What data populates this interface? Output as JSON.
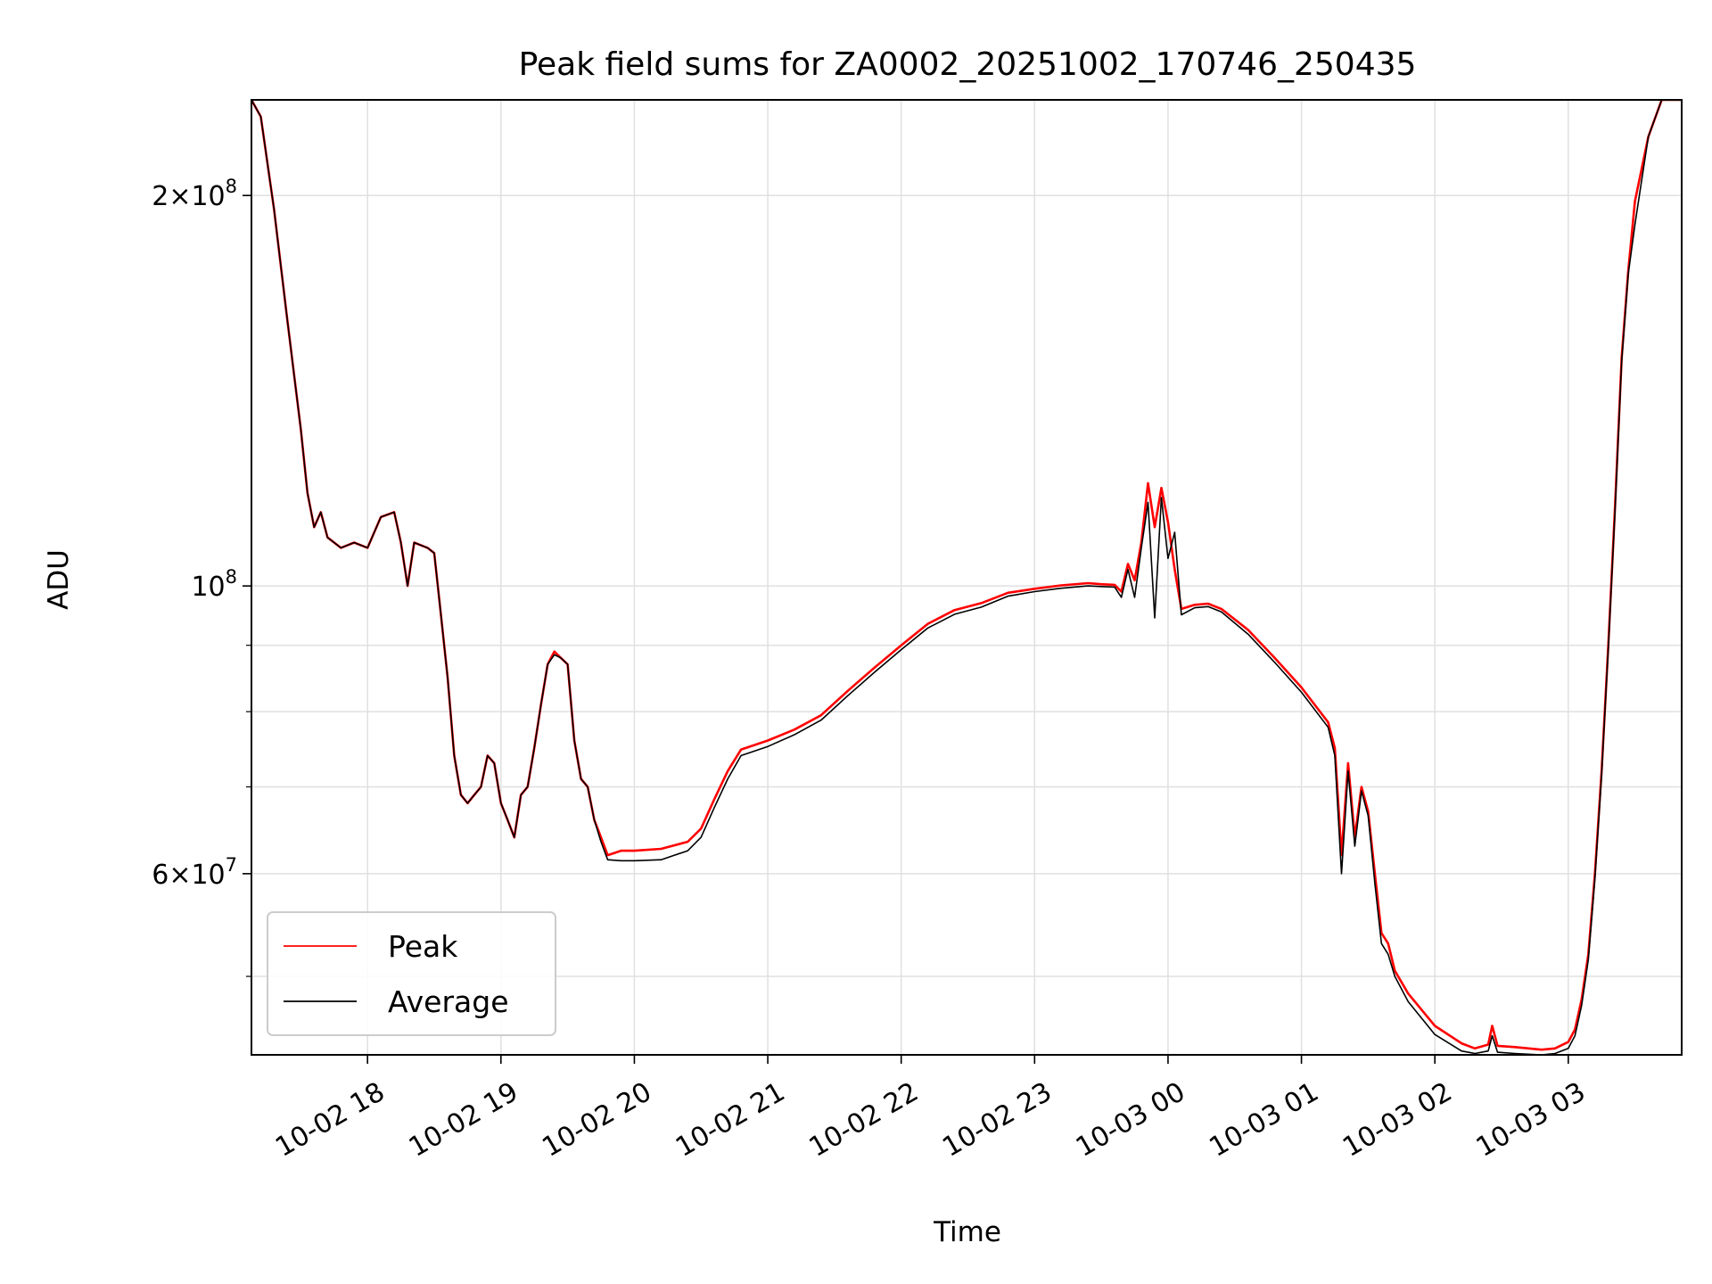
{
  "chart_data": {
    "type": "line",
    "title": "Peak field sums for ZA0002_20251002_170746_250435",
    "xlabel": "Time",
    "ylabel": "ADU",
    "yscale": "log",
    "grid": true,
    "legend_position": "lower-left",
    "x_unit": "hours since 10-02 17:00",
    "xlim": [
      0.13,
      10.85
    ],
    "ylim": [
      43500000,
      237000000
    ],
    "x_ticks": [
      {
        "value": 1,
        "label": "10-02 18"
      },
      {
        "value": 2,
        "label": "10-02 19"
      },
      {
        "value": 3,
        "label": "10-02 20"
      },
      {
        "value": 4,
        "label": "10-02 21"
      },
      {
        "value": 5,
        "label": "10-02 22"
      },
      {
        "value": 6,
        "label": "10-02 23"
      },
      {
        "value": 7,
        "label": "10-03 00"
      },
      {
        "value": 8,
        "label": "10-03 01"
      },
      {
        "value": 9,
        "label": "10-03 02"
      },
      {
        "value": 10,
        "label": "10-03 03"
      }
    ],
    "y_ticks": [
      {
        "value": 200000000,
        "mantissa": "2",
        "exponent": "8"
      },
      {
        "value": 100000000,
        "mantissa": "",
        "exponent": "8"
      },
      {
        "value": 60000000,
        "mantissa": "6",
        "exponent": "7"
      }
    ],
    "y_minor_ticks": [
      50000000,
      70000000,
      80000000,
      90000000
    ],
    "series": [
      {
        "name": "Peak",
        "color": "#ff0000",
        "points": [
          [
            0.13,
            237000000
          ],
          [
            0.2,
            230000000
          ],
          [
            0.3,
            195000000
          ],
          [
            0.4,
            160000000
          ],
          [
            0.5,
            132000000
          ],
          [
            0.55,
            118000000
          ],
          [
            0.6,
            111000000
          ],
          [
            0.65,
            114000000
          ],
          [
            0.7,
            109000000
          ],
          [
            0.8,
            107000000
          ],
          [
            0.9,
            108000000
          ],
          [
            1.0,
            107000000
          ],
          [
            1.1,
            113000000
          ],
          [
            1.2,
            114000000
          ],
          [
            1.25,
            108000000
          ],
          [
            1.3,
            100000000
          ],
          [
            1.35,
            108000000
          ],
          [
            1.45,
            107000000
          ],
          [
            1.5,
            106000000
          ],
          [
            1.55,
            95000000
          ],
          [
            1.6,
            85000000
          ],
          [
            1.65,
            74000000
          ],
          [
            1.7,
            69000000
          ],
          [
            1.75,
            68000000
          ],
          [
            1.8,
            69000000
          ],
          [
            1.85,
            70000000
          ],
          [
            1.9,
            74000000
          ],
          [
            1.95,
            73000000
          ],
          [
            2.0,
            68000000
          ],
          [
            2.05,
            66000000
          ],
          [
            2.1,
            64000000
          ],
          [
            2.15,
            69000000
          ],
          [
            2.2,
            70000000
          ],
          [
            2.25,
            75000000
          ],
          [
            2.3,
            81000000
          ],
          [
            2.35,
            87000000
          ],
          [
            2.4,
            89000000
          ],
          [
            2.45,
            88000000
          ],
          [
            2.5,
            87000000
          ],
          [
            2.55,
            76000000
          ],
          [
            2.6,
            71000000
          ],
          [
            2.65,
            70000000
          ],
          [
            2.7,
            66000000
          ],
          [
            2.75,
            64000000
          ],
          [
            2.8,
            62000000
          ],
          [
            2.9,
            62500000
          ],
          [
            3.0,
            62500000
          ],
          [
            3.2,
            62700000
          ],
          [
            3.4,
            63500000
          ],
          [
            3.5,
            65000000
          ],
          [
            3.6,
            68500000
          ],
          [
            3.7,
            72000000
          ],
          [
            3.8,
            74800000
          ],
          [
            4.0,
            76000000
          ],
          [
            4.2,
            77500000
          ],
          [
            4.4,
            79500000
          ],
          [
            4.6,
            83000000
          ],
          [
            4.8,
            86500000
          ],
          [
            5.0,
            90000000
          ],
          [
            5.2,
            93500000
          ],
          [
            5.4,
            95800000
          ],
          [
            5.6,
            97000000
          ],
          [
            5.8,
            98800000
          ],
          [
            6.0,
            99500000
          ],
          [
            6.2,
            100100000
          ],
          [
            6.4,
            100500000
          ],
          [
            6.5,
            100300000
          ],
          [
            6.6,
            100200000
          ],
          [
            6.65,
            99000000
          ],
          [
            6.7,
            104000000
          ],
          [
            6.75,
            101000000
          ],
          [
            6.8,
            108000000
          ],
          [
            6.85,
            120000000
          ],
          [
            6.9,
            111000000
          ],
          [
            6.95,
            119000000
          ],
          [
            7.0,
            112000000
          ],
          [
            7.05,
            103000000
          ],
          [
            7.1,
            96000000
          ],
          [
            7.2,
            96700000
          ],
          [
            7.3,
            96900000
          ],
          [
            7.4,
            96000000
          ],
          [
            7.6,
            92500000
          ],
          [
            7.8,
            88000000
          ],
          [
            8.0,
            83500000
          ],
          [
            8.2,
            78500000
          ],
          [
            8.25,
            75000000
          ],
          [
            8.3,
            62000000
          ],
          [
            8.35,
            73000000
          ],
          [
            8.4,
            64000000
          ],
          [
            8.45,
            70000000
          ],
          [
            8.5,
            67000000
          ],
          [
            8.55,
            60000000
          ],
          [
            8.6,
            54000000
          ],
          [
            8.65,
            53000000
          ],
          [
            8.7,
            50500000
          ],
          [
            8.8,
            48500000
          ],
          [
            9.0,
            45800000
          ],
          [
            9.2,
            44400000
          ],
          [
            9.3,
            44000000
          ],
          [
            9.4,
            44300000
          ],
          [
            9.43,
            45800000
          ],
          [
            9.47,
            44200000
          ],
          [
            9.6,
            44100000
          ],
          [
            9.8,
            43900000
          ],
          [
            9.9,
            44000000
          ],
          [
            10.0,
            44500000
          ],
          [
            10.05,
            45500000
          ],
          [
            10.1,
            48000000
          ],
          [
            10.15,
            52000000
          ],
          [
            10.2,
            60000000
          ],
          [
            10.25,
            72000000
          ],
          [
            10.3,
            90000000
          ],
          [
            10.35,
            115000000
          ],
          [
            10.4,
            150000000
          ],
          [
            10.45,
            175000000
          ],
          [
            10.5,
            198000000
          ],
          [
            10.6,
            222000000
          ],
          [
            10.7,
            237000000
          ],
          [
            10.85,
            237000000
          ]
        ]
      },
      {
        "name": "Average",
        "color": "#000000",
        "points": [
          [
            0.13,
            237000000
          ],
          [
            0.2,
            230000000
          ],
          [
            0.3,
            195000000
          ],
          [
            0.4,
            160000000
          ],
          [
            0.5,
            132000000
          ],
          [
            0.55,
            118000000
          ],
          [
            0.6,
            111000000
          ],
          [
            0.65,
            114000000
          ],
          [
            0.7,
            109000000
          ],
          [
            0.8,
            107000000
          ],
          [
            0.9,
            108000000
          ],
          [
            1.0,
            107000000
          ],
          [
            1.1,
            113000000
          ],
          [
            1.2,
            114000000
          ],
          [
            1.25,
            108000000
          ],
          [
            1.3,
            100000000
          ],
          [
            1.35,
            108000000
          ],
          [
            1.45,
            107000000
          ],
          [
            1.5,
            106000000
          ],
          [
            1.55,
            95000000
          ],
          [
            1.6,
            85000000
          ],
          [
            1.65,
            74000000
          ],
          [
            1.7,
            69000000
          ],
          [
            1.75,
            68000000
          ],
          [
            1.8,
            69000000
          ],
          [
            1.85,
            70000000
          ],
          [
            1.9,
            74000000
          ],
          [
            1.95,
            73000000
          ],
          [
            2.0,
            68000000
          ],
          [
            2.05,
            66000000
          ],
          [
            2.1,
            64000000
          ],
          [
            2.15,
            69000000
          ],
          [
            2.2,
            70000000
          ],
          [
            2.25,
            75000000
          ],
          [
            2.3,
            81000000
          ],
          [
            2.35,
            87000000
          ],
          [
            2.4,
            88500000
          ],
          [
            2.45,
            88000000
          ],
          [
            2.5,
            87000000
          ],
          [
            2.55,
            76000000
          ],
          [
            2.6,
            71000000
          ],
          [
            2.65,
            70000000
          ],
          [
            2.7,
            66000000
          ],
          [
            2.75,
            63500000
          ],
          [
            2.8,
            61500000
          ],
          [
            2.9,
            61400000
          ],
          [
            3.0,
            61400000
          ],
          [
            3.2,
            61500000
          ],
          [
            3.4,
            62500000
          ],
          [
            3.5,
            64000000
          ],
          [
            3.6,
            67500000
          ],
          [
            3.7,
            71000000
          ],
          [
            3.8,
            74000000
          ],
          [
            4.0,
            75200000
          ],
          [
            4.2,
            76800000
          ],
          [
            4.4,
            78800000
          ],
          [
            4.6,
            82300000
          ],
          [
            4.8,
            85800000
          ],
          [
            5.0,
            89300000
          ],
          [
            5.2,
            92800000
          ],
          [
            5.4,
            95100000
          ],
          [
            5.6,
            96300000
          ],
          [
            5.8,
            98200000
          ],
          [
            6.0,
            99000000
          ],
          [
            6.2,
            99600000
          ],
          [
            6.4,
            100000000
          ],
          [
            6.5,
            99900000
          ],
          [
            6.6,
            99800000
          ],
          [
            6.65,
            98000000
          ],
          [
            6.7,
            103000000
          ],
          [
            6.75,
            98000000
          ],
          [
            6.8,
            107000000
          ],
          [
            6.85,
            116000000
          ],
          [
            6.9,
            94500000
          ],
          [
            6.95,
            117000000
          ],
          [
            7.0,
            105000000
          ],
          [
            7.05,
            110000000
          ],
          [
            7.1,
            95000000
          ],
          [
            7.2,
            96200000
          ],
          [
            7.3,
            96400000
          ],
          [
            7.4,
            95500000
          ],
          [
            7.6,
            91800000
          ],
          [
            7.8,
            87300000
          ],
          [
            8.0,
            82800000
          ],
          [
            8.2,
            77800000
          ],
          [
            8.25,
            74000000
          ],
          [
            8.3,
            60000000
          ],
          [
            8.35,
            72000000
          ],
          [
            8.4,
            63000000
          ],
          [
            8.45,
            69500000
          ],
          [
            8.5,
            66500000
          ],
          [
            8.55,
            59000000
          ],
          [
            8.6,
            53000000
          ],
          [
            8.65,
            52000000
          ],
          [
            8.7,
            50000000
          ],
          [
            8.8,
            47800000
          ],
          [
            9.0,
            45100000
          ],
          [
            9.2,
            43800000
          ],
          [
            9.3,
            43600000
          ],
          [
            9.4,
            43800000
          ],
          [
            9.43,
            45000000
          ],
          [
            9.47,
            43700000
          ],
          [
            9.6,
            43600000
          ],
          [
            9.8,
            43500000
          ],
          [
            9.9,
            43600000
          ],
          [
            10.0,
            44000000
          ],
          [
            10.05,
            45000000
          ],
          [
            10.1,
            47500000
          ],
          [
            10.15,
            51500000
          ],
          [
            10.2,
            59500000
          ],
          [
            10.25,
            71500000
          ],
          [
            10.3,
            89500000
          ],
          [
            10.35,
            114000000
          ],
          [
            10.4,
            149000000
          ],
          [
            10.45,
            174000000
          ],
          [
            10.5,
            190000000
          ],
          [
            10.6,
            222000000
          ],
          [
            10.7,
            237000000
          ],
          [
            10.85,
            237000000
          ]
        ]
      }
    ]
  }
}
